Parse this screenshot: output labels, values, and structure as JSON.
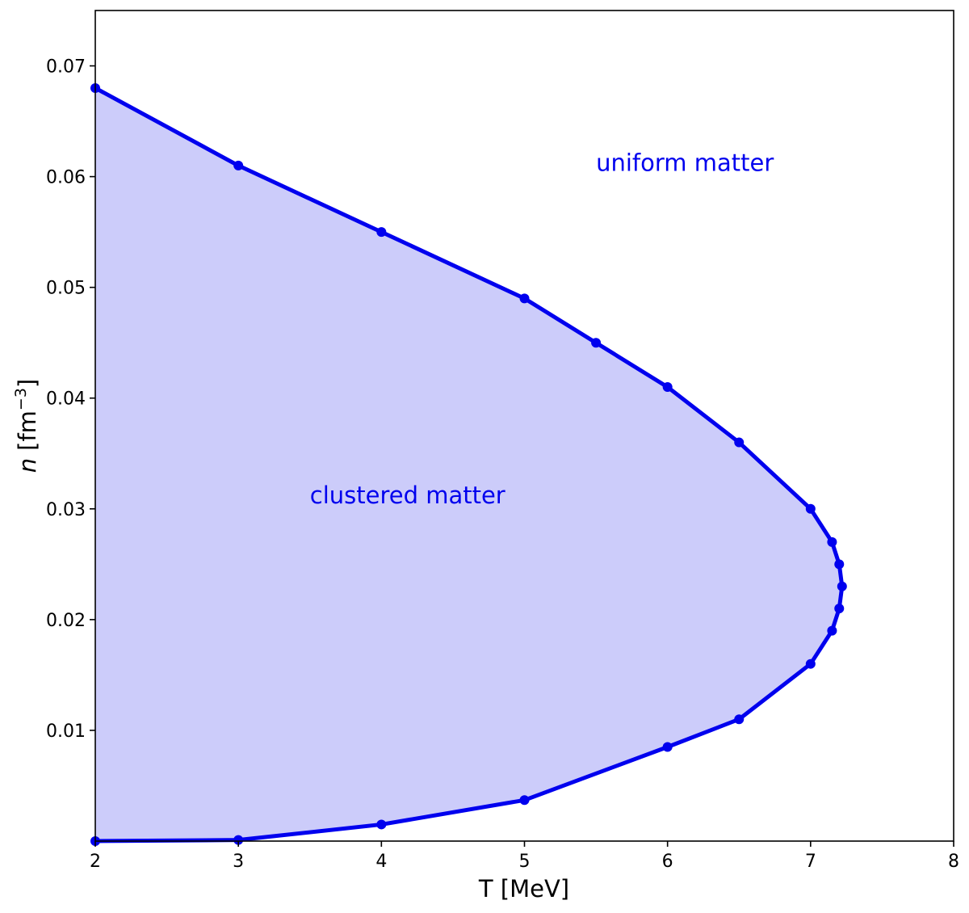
{
  "chart_data": {
    "type": "area",
    "xlabel": "T [MeV]",
    "ylabel_var": "n",
    "ylabel_unit_base": "[fm",
    "ylabel_unit_exp": "−3",
    "ylabel_unit_close": "]",
    "xlim": [
      2,
      8
    ],
    "ylim": [
      0,
      0.075
    ],
    "xticks": [
      2,
      3,
      4,
      5,
      6,
      7,
      8
    ],
    "xtick_labels": [
      "2",
      "3",
      "4",
      "5",
      "6",
      "7",
      "8"
    ],
    "yticks": [
      0.01,
      0.02,
      0.03,
      0.04,
      0.05,
      0.06,
      0.07
    ],
    "ytick_labels": [
      "0.01",
      "0.02",
      "0.03",
      "0.04",
      "0.05",
      "0.06",
      "0.07"
    ],
    "grid": false,
    "line_color": "#0000ee",
    "fill_color": "#ccccfa",
    "boundary": {
      "x": [
        2,
        3,
        4,
        5,
        5.5,
        6,
        6.5,
        7,
        7.15,
        7.2,
        7.22,
        7.2,
        7.15,
        7,
        6.5,
        6,
        5,
        4,
        3,
        2
      ],
      "y": [
        0.068,
        0.061,
        0.055,
        0.049,
        0.045,
        0.041,
        0.036,
        0.03,
        0.027,
        0.025,
        0.023,
        0.021,
        0.019,
        0.016,
        0.011,
        0.0085,
        0.0037,
        0.0015,
        0.0001,
        0.0
      ]
    },
    "annotations": [
      {
        "text": "uniform matter",
        "x": 5.5,
        "y": 0.0605,
        "color": "#0000ee"
      },
      {
        "text": "clustered matter",
        "x": 3.5,
        "y": 0.0305,
        "color": "#0000ee"
      }
    ]
  }
}
